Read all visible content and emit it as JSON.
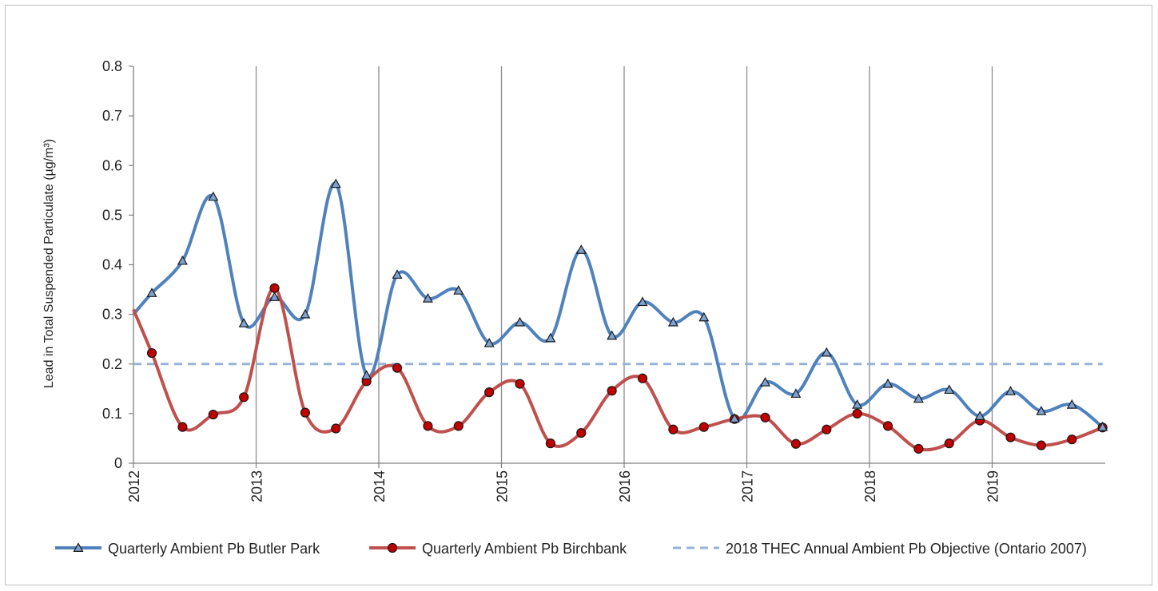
{
  "chart_data": {
    "type": "line",
    "title": "",
    "xlabel": "",
    "ylabel": "Lead in Total Suspended Particulate  (µg/m³)",
    "ylim": [
      0,
      0.8
    ],
    "xlim": [
      2012,
      2019.9
    ],
    "x_ticks": [
      "2012",
      "2013",
      "2014",
      "2015",
      "2016",
      "2017",
      "2018",
      "2019"
    ],
    "y_ticks": [
      "0",
      "0.1",
      "0.2",
      "0.3",
      "0.4",
      "0.5",
      "0.6",
      "0.7",
      "0.8"
    ],
    "vertical_gridlines": true,
    "legend_position": "bottom",
    "series": [
      {
        "name": "Quarterly Ambient Pb Butler Park",
        "color": "#4f81bd",
        "marker": "triangle",
        "smooth": true,
        "x": [
          2012.0,
          2012.15,
          2012.4,
          2012.65,
          2012.9,
          2013.15,
          2013.4,
          2013.65,
          2013.9,
          2014.15,
          2014.4,
          2014.65,
          2014.9,
          2015.15,
          2015.4,
          2015.65,
          2015.9,
          2016.15,
          2016.4,
          2016.65,
          2016.9,
          2017.15,
          2017.4,
          2017.65,
          2017.9,
          2018.15,
          2018.4,
          2018.65,
          2018.9,
          2019.15,
          2019.4,
          2019.65,
          2019.9
        ],
        "values": [
          0.3,
          0.343,
          0.408,
          0.537,
          0.282,
          0.335,
          0.3,
          0.563,
          0.177,
          0.38,
          0.332,
          0.348,
          0.242,
          0.284,
          0.252,
          0.43,
          0.257,
          0.325,
          0.284,
          0.294,
          0.09,
          0.163,
          0.14,
          0.223,
          0.118,
          0.16,
          0.13,
          0.148,
          0.095,
          0.145,
          0.105,
          0.118,
          0.073
        ],
        "marked": [
          false,
          true,
          true,
          true,
          true,
          true,
          true,
          true,
          true,
          true,
          true,
          true,
          true,
          true,
          true,
          true,
          true,
          true,
          true,
          true,
          true,
          true,
          true,
          true,
          true,
          true,
          true,
          true,
          true,
          true,
          true,
          true,
          true
        ]
      },
      {
        "name": "Quarterly Ambient Pb Birchbank",
        "color": "#c0504d",
        "marker": "circle",
        "smooth": true,
        "x": [
          2012.0,
          2012.15,
          2012.4,
          2012.65,
          2012.9,
          2013.15,
          2013.4,
          2013.65,
          2013.9,
          2014.15,
          2014.4,
          2014.65,
          2014.9,
          2015.15,
          2015.4,
          2015.65,
          2015.9,
          2016.15,
          2016.4,
          2016.65,
          2016.9,
          2017.15,
          2017.4,
          2017.65,
          2017.9,
          2018.15,
          2018.4,
          2018.65,
          2018.9,
          2019.15,
          2019.4,
          2019.65,
          2019.9
        ],
        "values": [
          0.31,
          0.222,
          0.073,
          0.098,
          0.133,
          0.353,
          0.102,
          0.07,
          0.165,
          0.192,
          0.075,
          0.075,
          0.143,
          0.16,
          0.04,
          0.061,
          0.146,
          0.171,
          0.068,
          0.073,
          0.089,
          0.092,
          0.039,
          0.068,
          0.1,
          0.075,
          0.029,
          0.04,
          0.086,
          0.052,
          0.036,
          0.048,
          0.072
        ],
        "marked": [
          false,
          true,
          true,
          true,
          true,
          true,
          true,
          true,
          true,
          true,
          true,
          true,
          true,
          true,
          true,
          true,
          true,
          true,
          true,
          true,
          true,
          true,
          true,
          true,
          true,
          true,
          true,
          true,
          true,
          true,
          true,
          true,
          true
        ]
      },
      {
        "name": "2018 THEC Annual Ambient Pb Objective (Ontario 2007)",
        "color": "#95b3d7",
        "marker": "none",
        "dashed": true,
        "x": [
          2012.0,
          2019.9
        ],
        "values": [
          0.2,
          0.2
        ]
      }
    ]
  }
}
